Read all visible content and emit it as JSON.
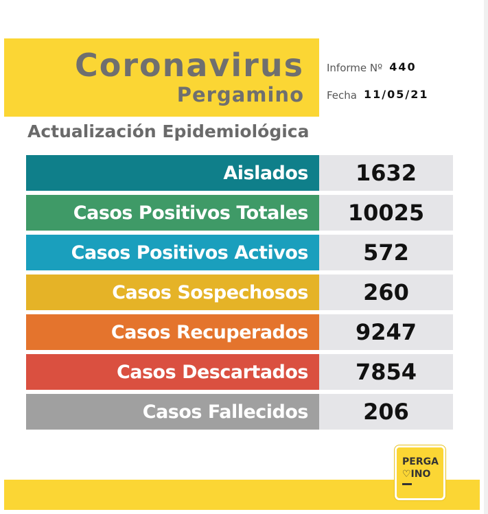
{
  "header": {
    "title": "Coronavirus",
    "subtitle": "Pergamino"
  },
  "report": {
    "number_label": "Informe Nº",
    "number": "440",
    "date_label": "Fecha",
    "date": "11/05/21"
  },
  "section_title": "Actualización Epidemiológica",
  "stats": [
    {
      "label": "Aislados",
      "value": "1632",
      "color": "#0f7f8a"
    },
    {
      "label": "Casos Positivos Totales",
      "value": "10025",
      "color": "#3f9a67"
    },
    {
      "label": "Casos Positivos Activos",
      "value": "572",
      "color": "#1a9fbd"
    },
    {
      "label": "Casos Sospechosos",
      "value": "260",
      "color": "#e5b327"
    },
    {
      "label": "Casos Recuperados",
      "value": "9247",
      "color": "#e4742d"
    },
    {
      "label": "Casos Descartados",
      "value": "7854",
      "color": "#da5040"
    },
    {
      "label": "Casos Fallecidos",
      "value": "206",
      "color": "#a0a0a0"
    }
  ],
  "logo": {
    "line1": "PERGA",
    "line2": "♡INO",
    "icon": "pergamino-logo-icon"
  },
  "colors": {
    "brand_yellow": "#fbd634",
    "title_gray": "#6f6f6f",
    "value_background": "#e5e5e8"
  }
}
